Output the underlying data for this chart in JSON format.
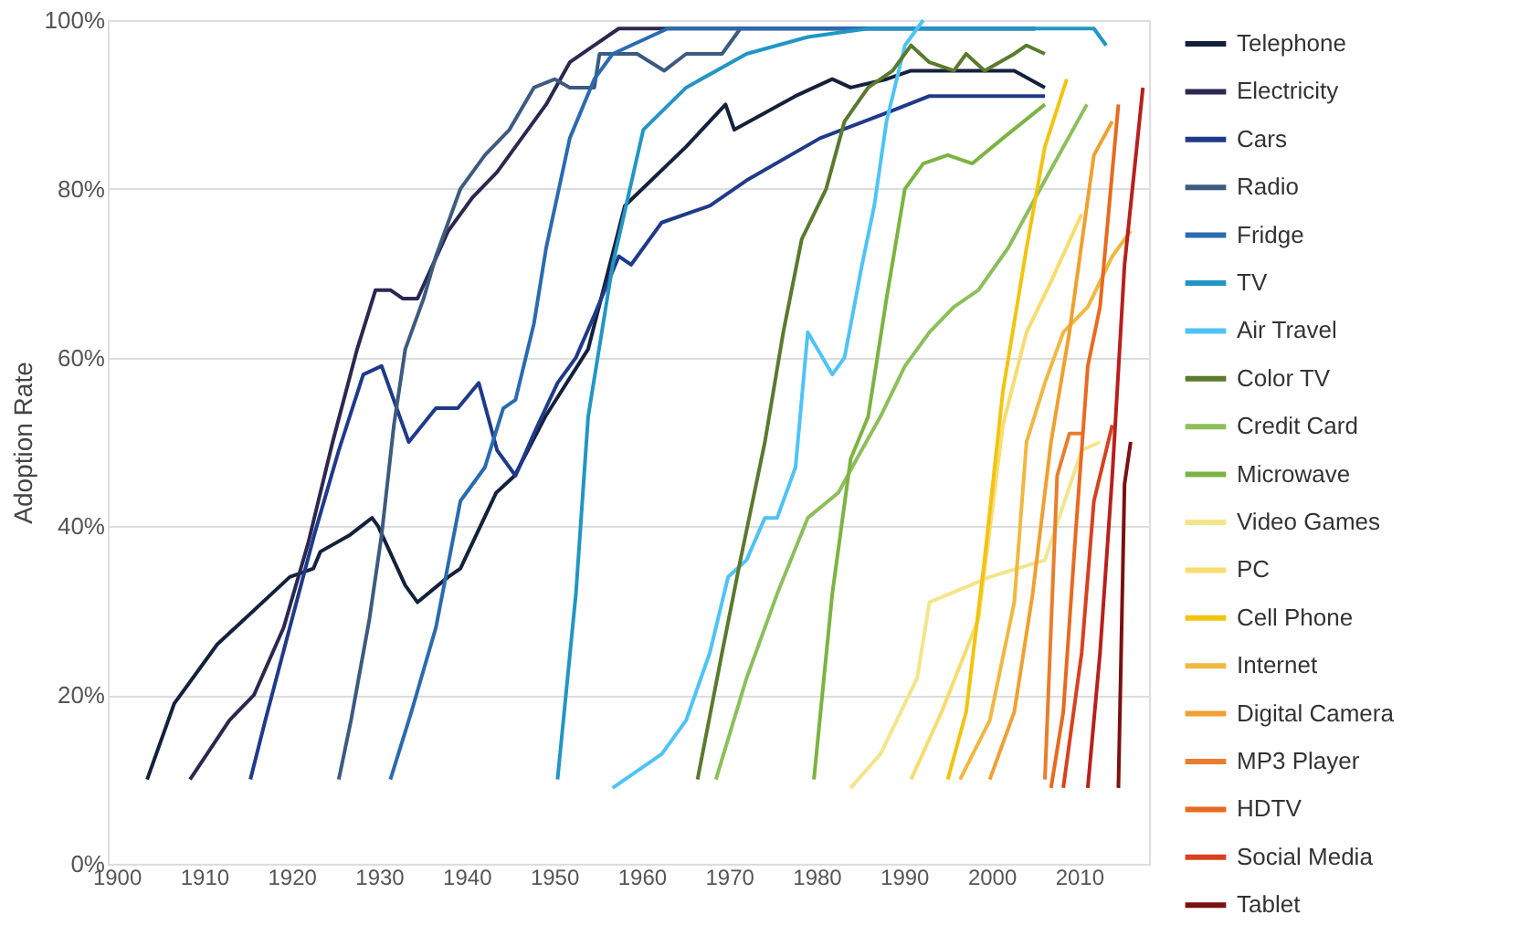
{
  "chart_data": {
    "type": "line",
    "ylabel": "Adoption Rate",
    "xlim": [
      1899,
      2018
    ],
    "ylim": [
      0,
      100
    ],
    "xticks": [
      1900,
      1910,
      1920,
      1930,
      1940,
      1950,
      1960,
      1970,
      1980,
      1990,
      2000,
      2010
    ],
    "yticks": [
      {
        "value": 0,
        "label": "0%"
      },
      {
        "value": 20,
        "label": "20%"
      },
      {
        "value": 40,
        "label": "40%"
      },
      {
        "value": 60,
        "label": "60%"
      },
      {
        "value": 80,
        "label": "80%"
      },
      {
        "value": 100,
        "label": "100%"
      }
    ],
    "grid": "y",
    "legend": "right",
    "marker": "none",
    "line_style": "solid",
    "series": [
      {
        "name": "Telephone",
        "color": "#14213d",
        "x": [
          1903.5,
          1906.6,
          1911.5,
          1919.8,
          1922.5,
          1923.3,
          1926.7,
          1929.2,
          1929.9,
          1933,
          1934.4,
          1937.9,
          1939.3,
          1943.4,
          1945.5,
          1949,
          1953.9,
          1958.1,
          1965.1,
          1969.6,
          1970.6,
          1977.6,
          1981.8,
          1983.9,
          1988,
          1990.8,
          2002.6,
          2006.1
        ],
        "values": [
          10,
          19,
          26,
          34,
          35,
          37,
          39,
          41,
          40,
          33,
          31,
          34,
          35,
          44,
          46,
          53,
          61,
          78,
          85,
          90,
          87,
          91,
          93,
          92,
          93,
          94,
          94,
          92
        ]
      },
      {
        "name": "Electricity",
        "color": "#2b2850",
        "x": [
          1908.4,
          1912.9,
          1915.7,
          1919.1,
          1921.9,
          1924.7,
          1927.5,
          1929.6,
          1931.3,
          1932.7,
          1934.4,
          1937.9,
          1940.7,
          1943.5,
          1946.3,
          1949.1,
          1951.8,
          1954.6,
          1957.4,
          2005
        ],
        "values": [
          10,
          17,
          20,
          28,
          38,
          50,
          61,
          68,
          68,
          67,
          67,
          75,
          79,
          82,
          86,
          90,
          95,
          97,
          99,
          99
        ]
      },
      {
        "name": "Cars",
        "color": "#1f3a8a",
        "x": [
          1915.3,
          1917,
          1919.8,
          1922.6,
          1925.4,
          1928.2,
          1930.3,
          1933.4,
          1936.5,
          1939,
          1941.4,
          1943.5,
          1945.6,
          1947.7,
          1950.4,
          1952.5,
          1954.6,
          1957.4,
          1958.8,
          1962.3,
          1967.8,
          1972,
          1980.4,
          1988,
          1992.9,
          2006.1
        ],
        "values": [
          10,
          17,
          28,
          39,
          49,
          58,
          59,
          50,
          54,
          54,
          57,
          49,
          46,
          51,
          57,
          60,
          65,
          72,
          71,
          76,
          78,
          81,
          86,
          89,
          91,
          91
        ]
      },
      {
        "name": "Radio",
        "color": "#3d5a80",
        "x": [
          1925.4,
          1926.8,
          1928.9,
          1930.3,
          1931.7,
          1933,
          1935.1,
          1936.5,
          1939.3,
          1942.1,
          1944.9,
          1947.7,
          1950.1,
          1951.8,
          1954.6,
          1955.2,
          1959.5,
          1962.6,
          1965.1,
          1969.2,
          1971.3,
          2005
        ],
        "values": [
          10,
          17,
          29,
          39,
          52,
          61,
          67,
          72,
          80,
          84,
          87,
          92,
          93,
          92,
          92,
          96,
          96,
          94,
          96,
          96,
          99,
          99
        ]
      },
      {
        "name": "Fridge",
        "color": "#2a6bb0",
        "x": [
          1931.3,
          1933.7,
          1936.5,
          1939.3,
          1942.1,
          1944.2,
          1945.6,
          1947.7,
          1949.1,
          1951.8,
          1954.6,
          1956.7,
          1963,
          2005
        ],
        "values": [
          10,
          18,
          28,
          43,
          47,
          54,
          55,
          64,
          73,
          86,
          93,
          96,
          99,
          99
        ]
      },
      {
        "name": "TV",
        "color": "#2196c4",
        "x": [
          1950.4,
          1952.5,
          1953.9,
          1956.7,
          1960.2,
          1965.1,
          1972,
          1979,
          1985.9,
          2009.6,
          2011.7,
          2013.1
        ],
        "values": [
          10,
          32,
          53,
          71,
          87,
          92,
          96,
          98,
          99,
          99,
          99,
          97
        ]
      },
      {
        "name": "Air Travel",
        "color": "#4fc3f7",
        "x": [
          1956.7,
          1959.5,
          1962.3,
          1965.1,
          1967.8,
          1969.9,
          1972,
          1974.1,
          1975.5,
          1977.6,
          1979,
          1981.8,
          1983.2,
          1985.2,
          1986.6,
          1988,
          1990.1,
          1992.2
        ],
        "values": [
          9,
          11,
          13,
          17,
          25,
          34,
          36,
          41,
          41,
          47,
          63,
          58,
          60,
          71,
          78,
          88,
          97,
          100
        ]
      },
      {
        "name": "Color TV",
        "color": "#5a7a2e",
        "x": [
          1966.4,
          1969.2,
          1971.3,
          1974.1,
          1976.2,
          1978.3,
          1981.1,
          1983.2,
          1985.9,
          1988.7,
          1990.8,
          1992.9,
          1995.7,
          1997.1,
          1999.2,
          2002.6,
          2004,
          2006.1
        ],
        "values": [
          10,
          25,
          36,
          50,
          63,
          74,
          80,
          88,
          92,
          94,
          97,
          95,
          94,
          96,
          94,
          96,
          97,
          96
        ]
      },
      {
        "name": "Credit Card",
        "color": "#8cbf5a",
        "x": [
          1968.5,
          1972,
          1975.5,
          1979,
          1982.5,
          1984.6,
          1987.3,
          1990.1,
          1992.9,
          1995.7,
          1998.5,
          2001.9,
          2006.1,
          2010.9
        ],
        "values": [
          10,
          22,
          32,
          41,
          44,
          48,
          53,
          59,
          63,
          66,
          68,
          73,
          81,
          90
        ]
      },
      {
        "name": "Microwave",
        "color": "#7cb342",
        "x": [
          1979.7,
          1981.8,
          1983.9,
          1985.9,
          1988,
          1990.1,
          1992.2,
          1995,
          1997.8,
          2001.3,
          2006.1
        ],
        "values": [
          10,
          32,
          48,
          53,
          67,
          80,
          83,
          84,
          83,
          86,
          90
        ]
      },
      {
        "name": "Video Games",
        "color": "#f3e58a",
        "x": [
          1983.9,
          1987.3,
          1991.5,
          1992.9,
          1999.8,
          2006.1,
          2010.3,
          2012.4
        ],
        "values": [
          9,
          13,
          22,
          31,
          34,
          36,
          49,
          50
        ]
      },
      {
        "name": "PC",
        "color": "#f7dc6f",
        "x": [
          1990.8,
          1994.3,
          1998.5,
          2001.3,
          2004,
          2006.8,
          2010.3
        ],
        "values": [
          10,
          18,
          29,
          52,
          63,
          69,
          77
        ]
      },
      {
        "name": "Cell Phone",
        "color": "#f2c40f",
        "x": [
          1995,
          1997.1,
          1999.2,
          2001.3,
          2004,
          2006.1,
          2008.6
        ],
        "values": [
          10,
          18,
          36,
          56,
          73,
          85,
          93
        ]
      },
      {
        "name": "Internet",
        "color": "#f0b840",
        "x": [
          1996.4,
          1999.8,
          2002.6,
          2004,
          2006.1,
          2008.2,
          2011,
          2013.8,
          2015.9
        ],
        "values": [
          10,
          17,
          31,
          50,
          57,
          63,
          66,
          72,
          75
        ]
      },
      {
        "name": "Digital Camera",
        "color": "#f0a030",
        "x": [
          1999.8,
          2002.6,
          2004.7,
          2006.8,
          2008.9,
          2011.7,
          2013.8
        ],
        "values": [
          10,
          18,
          32,
          50,
          63,
          84,
          88
        ]
      },
      {
        "name": "MP3 Player",
        "color": "#e97e2c",
        "x": [
          2006.1,
          2007.5,
          2008.9,
          2010.3
        ],
        "values": [
          10,
          46,
          51,
          51
        ]
      },
      {
        "name": "HDTV",
        "color": "#e86a20",
        "x": [
          2006.8,
          2008.2,
          2009.6,
          2011,
          2012.4,
          2014.5
        ],
        "values": [
          9,
          18,
          39,
          59,
          66,
          90
        ]
      },
      {
        "name": "Social Media",
        "color": "#d9401e",
        "x": [
          2008.2,
          2010.3,
          2011.7,
          2013.8
        ],
        "values": [
          9,
          25,
          43,
          52
        ]
      },
      {
        "color": "#b8201c",
        "x": [
          2011,
          2012.4,
          2013.8,
          2015.2,
          2017.3
        ],
        "values": [
          9,
          25,
          46,
          71,
          92
        ]
      },
      {
        "name": "Tablet",
        "color": "#7a1010",
        "x": [
          2014.5,
          2015.2,
          2015.9
        ],
        "values": [
          9,
          45,
          50
        ]
      }
    ]
  }
}
